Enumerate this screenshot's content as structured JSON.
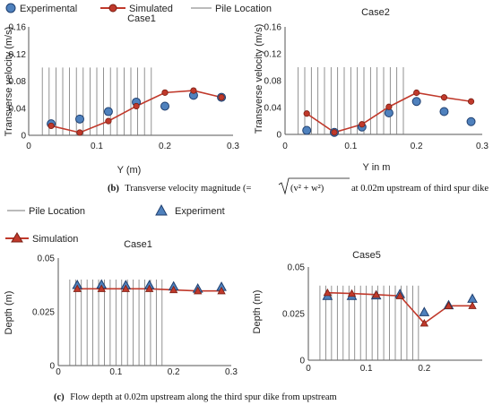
{
  "legend_top": {
    "experimental": "Experimental",
    "simulated": "Simulated",
    "pile": "Pile Location"
  },
  "legend_bottom": {
    "pile": "Pile Location",
    "experiment": "Experiment",
    "simulation": "Simulation"
  },
  "captions": {
    "b_label": "(b)",
    "b_text": "Transverse velocity magnitude (=",
    "b_formula": "(v² + w²)",
    "b_rest": "at 0.02m upstream of third spur dike",
    "c_label": "(c)",
    "c_text": "Flow depth at 0.02m upstream along the third spur dike from upstream"
  },
  "colors": {
    "simulated": "#c0392b",
    "experimental_fill": "#4f81bd",
    "experimental_stroke": "#1f3f6f",
    "pile": "#777777"
  },
  "chart_data": [
    {
      "id": "b1",
      "type": "scatter+line",
      "title": "Case1",
      "xlabel": "Y (m)",
      "ylabel": "Transverse velocity (m/s)",
      "xlim": [
        0,
        0.3
      ],
      "ylim": [
        0,
        0.16
      ],
      "xticks": [
        0,
        0.1,
        0.2,
        0.3
      ],
      "xtick_labels": [
        "0",
        "0.1",
        "0.2",
        "0.3"
      ],
      "yticks": [
        0,
        0.04,
        0.08,
        0.12,
        0.16
      ],
      "ytick_labels": [
        "0",
        "0.04",
        "0.08",
        "0.12",
        "0.16"
      ],
      "pile_x": [
        0.02,
        0.03,
        0.04,
        0.05,
        0.06,
        0.07,
        0.08,
        0.09,
        0.1,
        0.11,
        0.12,
        0.13,
        0.14,
        0.15,
        0.16,
        0.17,
        0.18
      ],
      "pile_top": 0.1,
      "marker": "circle",
      "series": [
        {
          "name": "Experimental",
          "x": [
            0.033,
            0.075,
            0.117,
            0.158,
            0.2,
            0.242,
            0.283
          ],
          "y": [
            0.017,
            0.024,
            0.035,
            0.049,
            0.043,
            0.059,
            0.056
          ]
        },
        {
          "name": "Simulated",
          "x": [
            0.033,
            0.075,
            0.117,
            0.158,
            0.2,
            0.242,
            0.283
          ],
          "y": [
            0.014,
            0.004,
            0.021,
            0.043,
            0.063,
            0.066,
            0.056
          ]
        }
      ]
    },
    {
      "id": "b2",
      "type": "scatter+line",
      "title": "Case2",
      "xlabel": "Y in m",
      "ylabel": "Transverse velocity (m/s)",
      "xlim": [
        0,
        0.3
      ],
      "ylim": [
        0,
        0.16
      ],
      "xticks": [
        0,
        0.1,
        0.2,
        0.3
      ],
      "xtick_labels": [
        "0",
        "0.1",
        "0.2",
        "0.3"
      ],
      "yticks": [
        0,
        0.04,
        0.08,
        0.12,
        0.16
      ],
      "ytick_labels": [
        "0",
        "0.04",
        "0.08",
        "0.12",
        "0.16"
      ],
      "pile_x": [
        0.02,
        0.03,
        0.04,
        0.05,
        0.06,
        0.07,
        0.08,
        0.09,
        0.1,
        0.11,
        0.12,
        0.13,
        0.14,
        0.15,
        0.16,
        0.17,
        0.18
      ],
      "pile_top": 0.1,
      "marker": "circle",
      "series": [
        {
          "name": "Experimental",
          "x": [
            0.033,
            0.075,
            0.117,
            0.158,
            0.2,
            0.242,
            0.283
          ],
          "y": [
            0.006,
            0.003,
            0.011,
            0.032,
            0.049,
            0.034,
            0.019
          ]
        },
        {
          "name": "Simulated",
          "x": [
            0.033,
            0.075,
            0.117,
            0.158,
            0.2,
            0.242,
            0.283
          ],
          "y": [
            0.031,
            0.003,
            0.015,
            0.041,
            0.062,
            0.055,
            0.049
          ]
        }
      ]
    },
    {
      "id": "c1",
      "type": "scatter+line",
      "title": "Case1",
      "xlabel": "",
      "ylabel": "Depth (m)",
      "xlim": [
        0,
        0.3
      ],
      "ylim": [
        0,
        0.05
      ],
      "xticks": [
        0,
        0.1,
        0.2,
        0.3
      ],
      "xtick_labels": [
        "0",
        "0.1",
        "0.2",
        "0.3"
      ],
      "yticks": [
        0,
        0.025,
        0.05
      ],
      "ytick_labels": [
        "0",
        "0.025",
        "0.05"
      ],
      "pile_x": [
        0.02,
        0.03,
        0.04,
        0.05,
        0.06,
        0.07,
        0.08,
        0.09,
        0.1,
        0.11,
        0.12,
        0.13,
        0.14,
        0.15,
        0.16,
        0.17,
        0.18
      ],
      "pile_top": 0.04,
      "marker": "triangle",
      "series": [
        {
          "name": "Experiment",
          "x": [
            0.033,
            0.075,
            0.117,
            0.158,
            0.2,
            0.242,
            0.283
          ],
          "y": [
            0.0375,
            0.0377,
            0.0374,
            0.0374,
            0.0368,
            0.0358,
            0.0366
          ]
        },
        {
          "name": "Simulation",
          "x": [
            0.033,
            0.075,
            0.117,
            0.158,
            0.2,
            0.242,
            0.283
          ],
          "y": [
            0.0357,
            0.0357,
            0.0357,
            0.0357,
            0.0352,
            0.0347,
            0.0347
          ]
        }
      ]
    },
    {
      "id": "c2",
      "type": "scatter+line",
      "title": "Case5",
      "xlabel": "",
      "ylabel": "Depth (m)",
      "xlim": [
        0,
        0.3
      ],
      "ylim": [
        0,
        0.05
      ],
      "xticks": [
        0,
        0.1,
        0.2
      ],
      "xtick_labels": [
        "0",
        "0.1",
        "0.2"
      ],
      "yticks": [
        0,
        0.025,
        0.05
      ],
      "ytick_labels": [
        "0",
        "0.025",
        "0.05"
      ],
      "pile_x": [
        0.02,
        0.03,
        0.04,
        0.05,
        0.06,
        0.07,
        0.08,
        0.09,
        0.1,
        0.11,
        0.12,
        0.13,
        0.14,
        0.15,
        0.16,
        0.17,
        0.18,
        0.19
      ],
      "pile_top": 0.04,
      "marker": "triangle",
      "series": [
        {
          "name": "Experiment",
          "x": [
            0.033,
            0.075,
            0.117,
            0.158,
            0.2,
            0.242,
            0.283
          ],
          "y": [
            0.0345,
            0.0345,
            0.0348,
            0.0355,
            0.0258,
            0.0295,
            0.033
          ]
        },
        {
          "name": "Simulation",
          "x": [
            0.033,
            0.075,
            0.117,
            0.158,
            0.2,
            0.242,
            0.283
          ],
          "y": [
            0.0362,
            0.0358,
            0.0352,
            0.0345,
            0.0198,
            0.0292,
            0.0292
          ]
        }
      ]
    }
  ]
}
